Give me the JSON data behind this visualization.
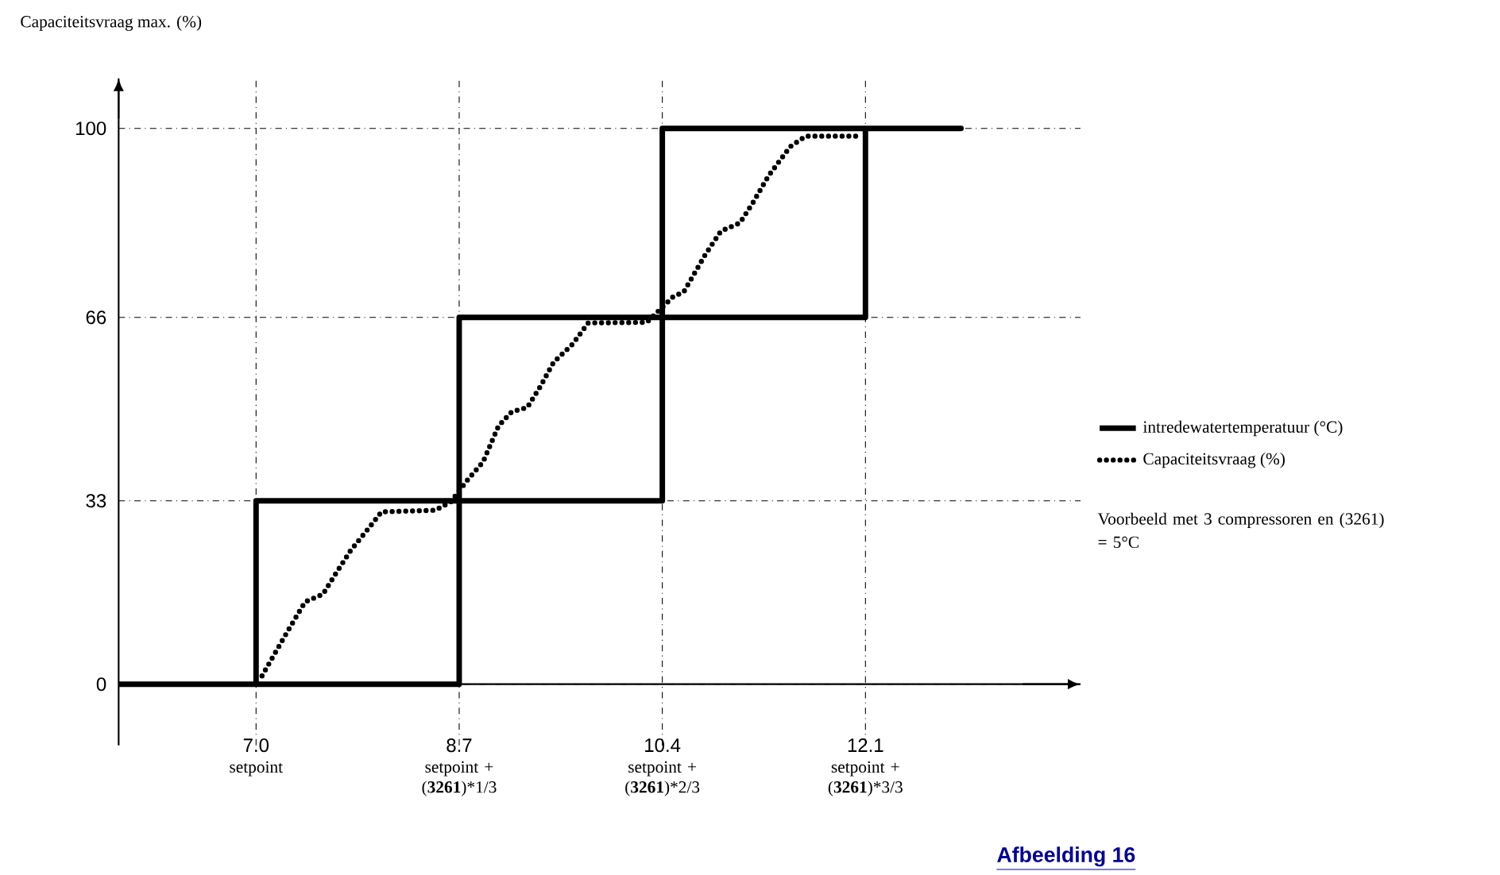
{
  "chart_data": {
    "type": "line",
    "ylabel": "Capaciteitsvraag max. (%)",
    "xlim": [
      5.85,
      13.9
    ],
    "ylim": [
      -11,
      109
    ],
    "xticks": [
      {
        "value": 7.0,
        "label": "7.0"
      },
      {
        "value": 8.7,
        "label": "8.7"
      },
      {
        "value": 10.4,
        "label": "10.4"
      },
      {
        "value": 12.1,
        "label": "12.1"
      }
    ],
    "yticks": [
      0,
      33,
      66,
      100
    ],
    "grid": true,
    "legend": "right",
    "series": [
      {
        "name": "intredewatertemperatuur (°C)",
        "color": "#000000",
        "line_style": "solid",
        "x": [
          5.85,
          8.7,
          8.7,
          10.4,
          10.4,
          12.1,
          12.1,
          12.9,
          10.4,
          10.4,
          8.7,
          8.7,
          7.0,
          7.0
        ],
        "values": [
          0,
          0,
          33,
          33,
          66,
          66,
          100,
          100,
          100,
          66,
          66,
          33,
          33,
          0
        ]
      },
      {
        "name": "Capaciteitsvraag (%)",
        "color": "#000000",
        "line_style": "dotted",
        "x": [
          7.05,
          7.25,
          7.41,
          7.56,
          7.67,
          7.79,
          7.94,
          8.05,
          8.5,
          8.63,
          8.76,
          8.9,
          9.03,
          9.14,
          9.27,
          9.38,
          9.49,
          9.65,
          9.78,
          10.27,
          10.49,
          10.58,
          10.76,
          10.89,
          11.05,
          11.16,
          11.29,
          11.47,
          11.6,
          12.02
        ],
        "values": [
          1.5,
          9,
          14.8,
          16.2,
          20,
          24,
          28,
          31,
          31.3,
          32.8,
          36.5,
          40,
          46.5,
          49,
          49.8,
          53.6,
          57.9,
          61.2,
          65,
          65.1,
          69.7,
          70.6,
          77.3,
          81.5,
          83,
          86.7,
          91.5,
          96.7,
          98.6,
          98.6
        ]
      }
    ],
    "annotations": [
      "setpoint",
      "setpoint + (**3261**)*1/3",
      "setpoint + (**3261**)*2/3",
      "setpoint + (**3261**)*3/3",
      "Voorbeeld met 3 compressoren en (3261) = 5°C",
      "Afbeelding 16"
    ]
  }
}
